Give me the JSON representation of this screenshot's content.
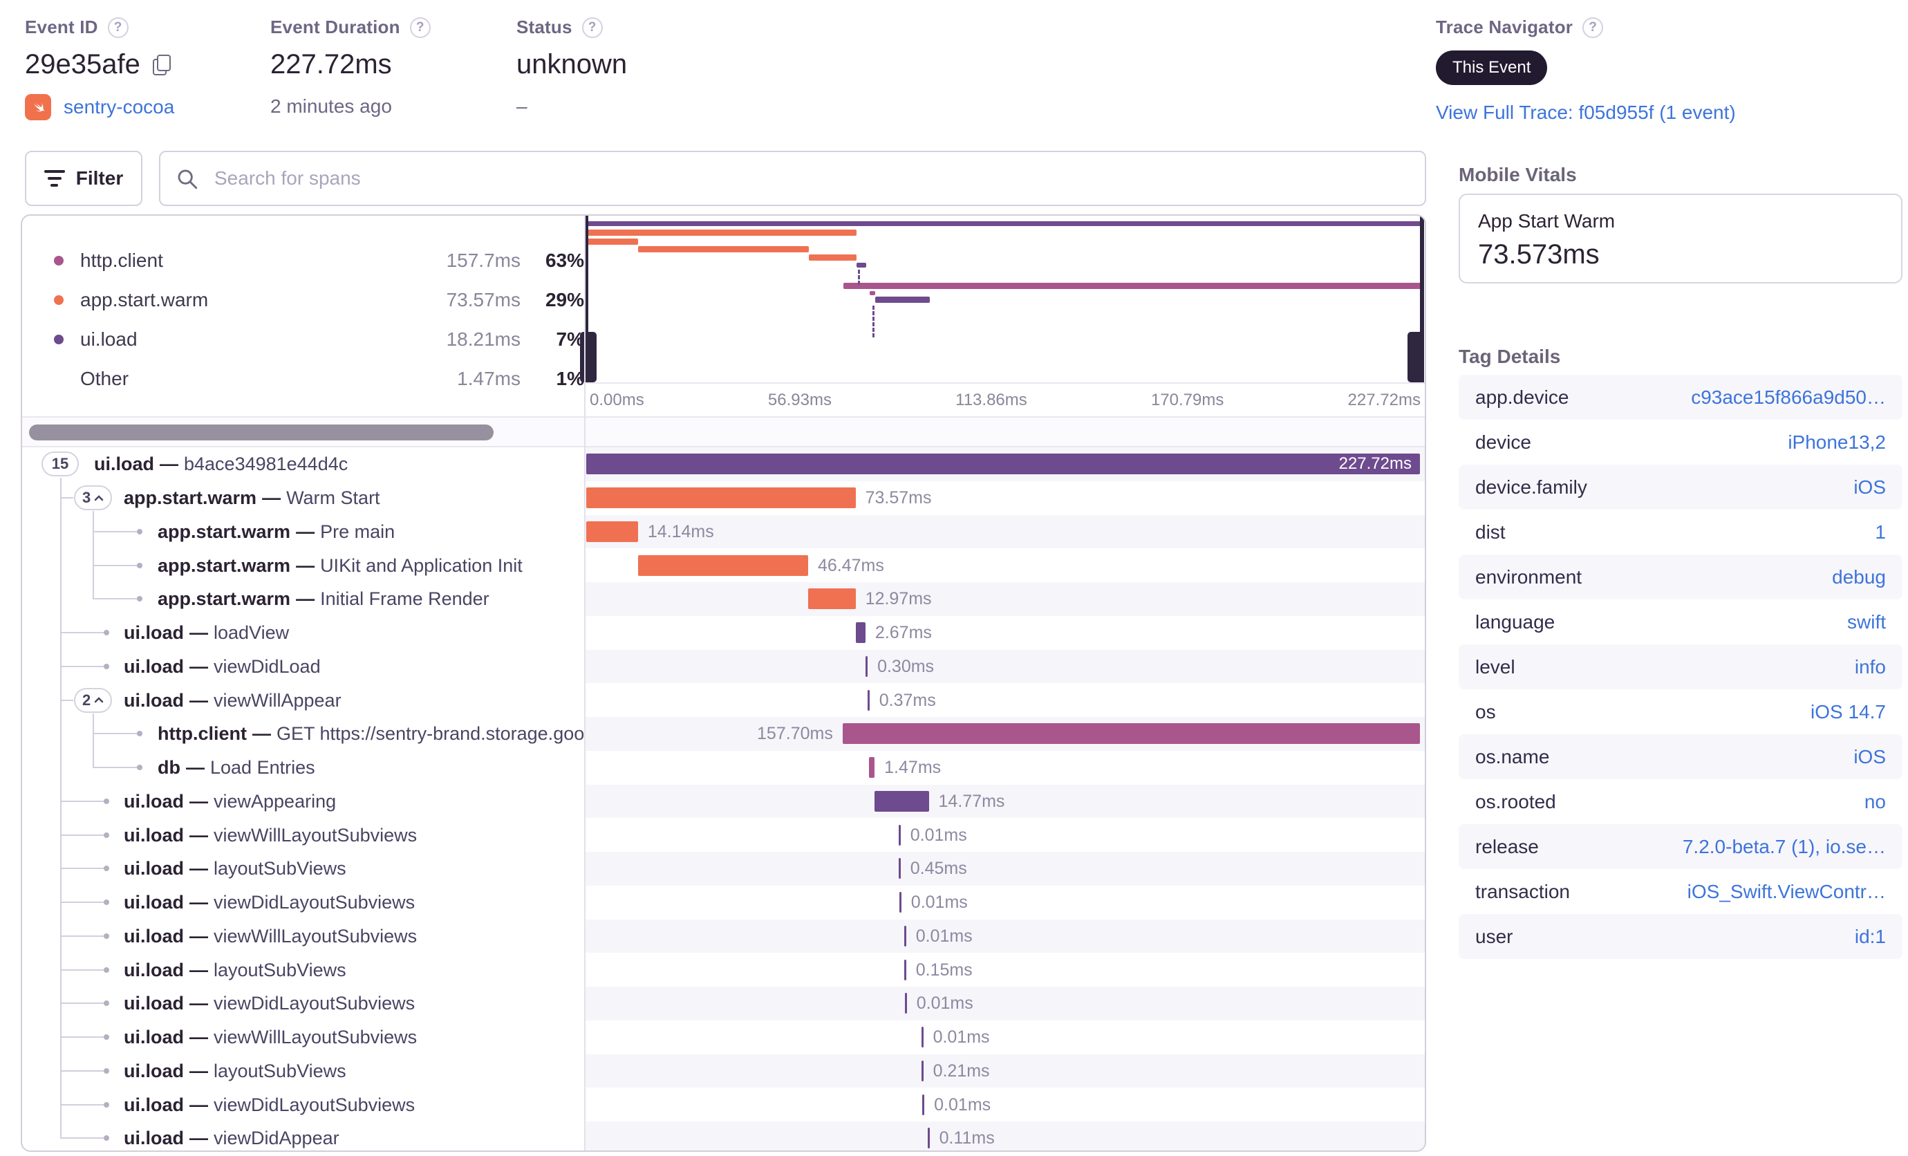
{
  "header": {
    "event_id": {
      "label": "Event ID",
      "value": "29e35afe",
      "project": "sentry-cocoa"
    },
    "event_duration": {
      "label": "Event Duration",
      "value": "227.72ms",
      "sub": "2 minutes ago"
    },
    "status": {
      "label": "Status",
      "value": "unknown",
      "sub": "–"
    }
  },
  "trace_navigator": {
    "label": "Trace Navigator",
    "badge": "This Event",
    "link": "View Full Trace: f05d955f (1 event)"
  },
  "toolbar": {
    "filter_label": "Filter",
    "search_placeholder": "Search for spans"
  },
  "legend": {
    "items": [
      {
        "name": "http.client",
        "duration": "157.7ms",
        "pct": "63%",
        "color": "mauve"
      },
      {
        "name": "app.start.warm",
        "duration": "73.57ms",
        "pct": "29%",
        "color": "orange"
      },
      {
        "name": "ui.load",
        "duration": "18.21ms",
        "pct": "7%",
        "color": "purple"
      },
      {
        "name": "Other",
        "duration": "1.47ms",
        "pct": "1%",
        "color": null
      }
    ]
  },
  "minimap": {
    "axis_ticks": [
      "0.00ms",
      "56.93ms",
      "113.86ms",
      "170.79ms",
      "227.72ms"
    ]
  },
  "spans": {
    "total_ms": 227.72,
    "sep": "—",
    "rows": [
      {
        "pill": "15",
        "chevron": false,
        "depth": 0,
        "op": "ui.load",
        "desc": "b4ace34981e44d4c",
        "start": 0,
        "dur": 227.72,
        "label": "227.72ms",
        "color": "purple",
        "label_side": "inside"
      },
      {
        "pill": "3",
        "chevron": true,
        "depth": 1,
        "op": "app.start.warm",
        "desc": "Warm Start",
        "start": 0,
        "dur": 73.57,
        "label": "73.57ms",
        "color": "orange",
        "label_side": "right"
      },
      {
        "pill": null,
        "depth": 2,
        "op": "app.start.warm",
        "desc": "Pre main",
        "start": 0,
        "dur": 14.14,
        "label": "14.14ms",
        "color": "orange",
        "label_side": "right"
      },
      {
        "pill": null,
        "depth": 2,
        "op": "app.start.warm",
        "desc": "UIKit and Application Init",
        "start": 14.14,
        "dur": 46.47,
        "label": "46.47ms",
        "color": "orange",
        "label_side": "right"
      },
      {
        "pill": null,
        "depth": 2,
        "op": "app.start.warm",
        "desc": "Initial Frame Render",
        "start": 60.61,
        "dur": 12.97,
        "label": "12.97ms",
        "color": "orange",
        "label_side": "right"
      },
      {
        "pill": null,
        "depth": 1,
        "op": "ui.load",
        "desc": "loadView",
        "start": 73.6,
        "dur": 2.67,
        "label": "2.67ms",
        "color": "purple",
        "label_side": "right"
      },
      {
        "pill": null,
        "depth": 1,
        "op": "ui.load",
        "desc": "viewDidLoad",
        "start": 76.3,
        "dur": 0.3,
        "label": "0.30ms",
        "color": "purple",
        "label_side": "right"
      },
      {
        "pill": "2",
        "chevron": true,
        "depth": 1,
        "op": "ui.load",
        "desc": "viewWillAppear",
        "start": 76.8,
        "dur": 0.37,
        "label": "0.37ms",
        "color": "purple",
        "label_side": "right"
      },
      {
        "pill": null,
        "depth": 2,
        "op": "http.client",
        "desc": "GET https://sentry-brand.storage.googlea",
        "start": 70.02,
        "dur": 157.7,
        "label": "157.70ms",
        "color": "mauve",
        "label_side": "left"
      },
      {
        "pill": null,
        "depth": 2,
        "op": "db",
        "desc": "Load Entries",
        "start": 77.3,
        "dur": 1.47,
        "label": "1.47ms",
        "color": "mauve",
        "label_side": "right"
      },
      {
        "pill": null,
        "depth": 1,
        "op": "ui.load",
        "desc": "viewAppearing",
        "start": 78.8,
        "dur": 14.77,
        "label": "14.77ms",
        "color": "purple",
        "label_side": "right"
      },
      {
        "pill": null,
        "depth": 1,
        "op": "ui.load",
        "desc": "viewWillLayoutSubviews",
        "start": 85.3,
        "dur": 0.01,
        "label": "0.01ms",
        "color": "purple",
        "label_side": "right"
      },
      {
        "pill": null,
        "depth": 1,
        "op": "ui.load",
        "desc": "layoutSubViews",
        "start": 85.3,
        "dur": 0.45,
        "label": "0.45ms",
        "color": "purple",
        "label_side": "right"
      },
      {
        "pill": null,
        "depth": 1,
        "op": "ui.load",
        "desc": "viewDidLayoutSubviews",
        "start": 85.5,
        "dur": 0.01,
        "label": "0.01ms",
        "color": "purple",
        "label_side": "right"
      },
      {
        "pill": null,
        "depth": 1,
        "op": "ui.load",
        "desc": "viewWillLayoutSubviews",
        "start": 86.8,
        "dur": 0.01,
        "label": "0.01ms",
        "color": "purple",
        "label_side": "right"
      },
      {
        "pill": null,
        "depth": 1,
        "op": "ui.load",
        "desc": "layoutSubViews",
        "start": 86.8,
        "dur": 0.15,
        "label": "0.15ms",
        "color": "purple",
        "label_side": "right"
      },
      {
        "pill": null,
        "depth": 1,
        "op": "ui.load",
        "desc": "viewDidLayoutSubviews",
        "start": 87.0,
        "dur": 0.01,
        "label": "0.01ms",
        "color": "purple",
        "label_side": "right"
      },
      {
        "pill": null,
        "depth": 1,
        "op": "ui.load",
        "desc": "viewWillLayoutSubviews",
        "start": 91.5,
        "dur": 0.01,
        "label": "0.01ms",
        "color": "purple",
        "label_side": "right"
      },
      {
        "pill": null,
        "depth": 1,
        "op": "ui.load",
        "desc": "layoutSubViews",
        "start": 91.5,
        "dur": 0.21,
        "label": "0.21ms",
        "color": "purple",
        "label_side": "right"
      },
      {
        "pill": null,
        "depth": 1,
        "op": "ui.load",
        "desc": "viewDidLayoutSubviews",
        "start": 91.8,
        "dur": 0.01,
        "label": "0.01ms",
        "color": "purple",
        "label_side": "right"
      },
      {
        "pill": null,
        "depth": 1,
        "op": "ui.load",
        "desc": "viewDidAppear",
        "start": 93.2,
        "dur": 0.11,
        "label": "0.11ms",
        "color": "purple",
        "label_side": "right"
      }
    ]
  },
  "mobile_vitals": {
    "title": "Mobile Vitals",
    "metric": "App Start Warm",
    "value": "73.573ms"
  },
  "tag_details": {
    "title": "Tag Details",
    "rows": [
      {
        "key": "app.device",
        "value": "c93ace15f866a9d50…"
      },
      {
        "key": "device",
        "value": "iPhone13,2"
      },
      {
        "key": "device.family",
        "value": "iOS"
      },
      {
        "key": "dist",
        "value": "1"
      },
      {
        "key": "environment",
        "value": "debug"
      },
      {
        "key": "language",
        "value": "swift"
      },
      {
        "key": "level",
        "value": "info"
      },
      {
        "key": "os",
        "value": "iOS 14.7"
      },
      {
        "key": "os.name",
        "value": "iOS"
      },
      {
        "key": "os.rooted",
        "value": "no"
      },
      {
        "key": "release",
        "value": "7.2.0-beta.7 (1), io.se…"
      },
      {
        "key": "transaction",
        "value": "iOS_Swift.ViewContr…"
      },
      {
        "key": "user",
        "value": "id:1"
      }
    ]
  },
  "colors": {
    "purple": "#6e4a8e",
    "orange": "#ef7152",
    "mauve": "#a9568c",
    "blue": "#3d74db",
    "stripe": "#f6f5fa"
  }
}
